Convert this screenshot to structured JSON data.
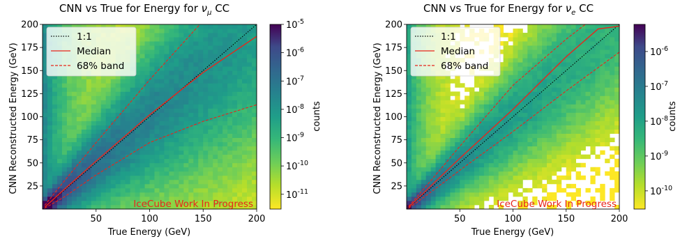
{
  "chart_data": [
    {
      "type": "heatmap",
      "title_prefix": "CNN vs True for Energy  for ",
      "title_particle": "ν",
      "title_sub": "μ",
      "title_suffix": " CC",
      "xlabel": "True Energy (GeV)",
      "ylabel": "CNN Reconstructed Energy (GeV)",
      "xlim": [
        0,
        200
      ],
      "ylim": [
        0,
        200
      ],
      "xticks": [
        50,
        100,
        150,
        200
      ],
      "yticks": [
        25,
        50,
        75,
        100,
        125,
        150,
        175,
        200
      ],
      "colorbar_label": "counts",
      "colorbar_scale": "log",
      "colorbar_range": [
        3e-12,
        1e-05
      ],
      "colorbar_ticks": [
        {
          "base": "10",
          "exp": "-5",
          "value": 1e-05
        },
        {
          "base": "10",
          "exp": "-6",
          "value": 1e-06
        },
        {
          "base": "10",
          "exp": "-7",
          "value": 1e-07
        },
        {
          "base": "10",
          "exp": "-8",
          "value": 1e-08
        },
        {
          "base": "10",
          "exp": "-9",
          "value": 1e-09
        },
        {
          "base": "10",
          "exp": "-10",
          "value": 1e-10
        },
        {
          "base": "10",
          "exp": "-11",
          "value": 1e-11
        }
      ],
      "legend_position": "top-left",
      "legend": [
        {
          "label": "1:1",
          "style": "dotted",
          "color": "#000000"
        },
        {
          "label": "Median",
          "style": "solid",
          "color": "#e8261b"
        },
        {
          "label": "68% band",
          "style": "dashed",
          "color": "#e8261b"
        }
      ],
      "watermark": "IceCube Work In Progress",
      "series": [
        {
          "style": "dotted",
          "x": [
            0,
            200
          ],
          "y": [
            0,
            200
          ]
        },
        {
          "style": "solid",
          "x": [
            2,
            20,
            50,
            100,
            150,
            200
          ],
          "y": [
            2,
            21,
            52,
            102,
            148,
            187
          ]
        },
        {
          "style": "dashed",
          "x": [
            2,
            20,
            50,
            100,
            147
          ],
          "y": [
            4,
            30,
            72,
            140,
            200
          ]
        },
        {
          "style": "dashed",
          "x": [
            2,
            20,
            50,
            100,
            150,
            200
          ],
          "y": [
            1,
            13,
            37,
            72,
            95,
            113
          ]
        }
      ]
    },
    {
      "type": "heatmap",
      "title_prefix": "CNN vs True for Energy  for ",
      "title_particle": "ν",
      "title_sub": "e",
      "title_suffix": " CC",
      "xlabel": "True Energy (GeV)",
      "ylabel": "CNN Reconstructed Energy (GeV)",
      "xlim": [
        0,
        200
      ],
      "ylim": [
        0,
        200
      ],
      "xticks": [
        50,
        100,
        150,
        200
      ],
      "yticks": [
        25,
        50,
        75,
        100,
        125,
        150,
        175,
        200
      ],
      "colorbar_label": "counts",
      "colorbar_scale": "log",
      "colorbar_range": [
        3e-11,
        6e-06
      ],
      "colorbar_ticks": [
        {
          "base": "10",
          "exp": "-6",
          "value": 1e-06
        },
        {
          "base": "10",
          "exp": "-7",
          "value": 1e-07
        },
        {
          "base": "10",
          "exp": "-8",
          "value": 1e-08
        },
        {
          "base": "10",
          "exp": "-9",
          "value": 1e-09
        },
        {
          "base": "10",
          "exp": "-10",
          "value": 1e-10
        }
      ],
      "legend_position": "top-left",
      "legend": [
        {
          "label": "1:1",
          "style": "dotted",
          "color": "#000000"
        },
        {
          "label": "Median",
          "style": "solid",
          "color": "#e8261b"
        },
        {
          "label": "68% band",
          "style": "dashed",
          "color": "#e8261b"
        }
      ],
      "watermark": "IceCube Work In Progress",
      "series": [
        {
          "style": "dotted",
          "x": [
            0,
            200
          ],
          "y": [
            0,
            200
          ]
        },
        {
          "style": "solid",
          "x": [
            2,
            20,
            50,
            100,
            150,
            180,
            200
          ],
          "y": [
            2,
            22,
            55,
            108,
            165,
            195,
            198
          ]
        },
        {
          "style": "dashed",
          "x": [
            2,
            20,
            50,
            100,
            150,
            168
          ],
          "y": [
            3,
            27,
            68,
            134,
            184,
            200
          ]
        },
        {
          "style": "dashed",
          "x": [
            2,
            20,
            50,
            100,
            150,
            200
          ],
          "y": [
            1,
            16,
            42,
            84,
            128,
            170
          ]
        }
      ]
    }
  ]
}
